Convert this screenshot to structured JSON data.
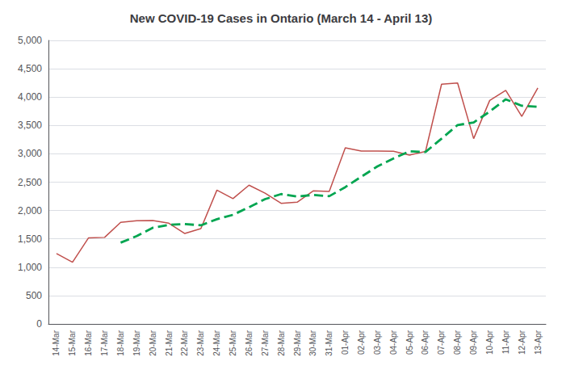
{
  "chart_data": {
    "type": "line",
    "title": "New COVID-19 Cases in Ontario (March 14 - April 13)",
    "categories": [
      "14-Mar",
      "15-Mar",
      "16-Mar",
      "17-Mar",
      "18-Mar",
      "19-Mar",
      "20-Mar",
      "21-Mar",
      "22-Mar",
      "23-Mar",
      "24-Mar",
      "25-Mar",
      "26-Mar",
      "27-Mar",
      "28-Mar",
      "29-Mar",
      "30-Mar",
      "31-Mar",
      "01-Apr",
      "02-Apr",
      "03-Apr",
      "04-Apr",
      "05-Apr",
      "06-Apr",
      "07-Apr",
      "08-Apr",
      "09-Apr",
      "10-Apr",
      "11-Apr",
      "12-Apr",
      "13-Apr"
    ],
    "series": [
      {
        "color": "#C0504D",
        "line_style": "solid",
        "values": [
          1241,
          1087,
          1518,
          1526,
          1792,
          1820,
          1823,
          1776,
          1595,
          1680,
          2359,
          2209,
          2447,
          2307,
          2127,
          2146,
          2346,
          2336,
          3106,
          3050,
          3047,
          3044,
          2977,
          3041,
          4227,
          4249,
          3268,
          3940,
          4119,
          3660,
          4163
        ]
      },
      {
        "color": "#00A550",
        "line_style": "dashed",
        "values": [
          null,
          null,
          null,
          null,
          1432.8,
          1548.6,
          1695.8,
          1747.4,
          1761.2,
          1738.8,
          1846.6,
          1923.8,
          2058,
          2200.4,
          2289.8,
          2247.2,
          2274.6,
          2252.4,
          2412.2,
          2596.8,
          2777,
          2916.6,
          3044.8,
          3031.8,
          3267.2,
          3507.6,
          3552.4,
          3745,
          3960.6,
          3847.2,
          3830
        ]
      }
    ],
    "ylim": [
      0,
      5000
    ],
    "yticks": [
      0,
      500,
      {
        "value": 1000,
        "label": "1,000"
      },
      {
        "value": 1500,
        "label": "1,500"
      },
      {
        "value": 2000,
        "label": "2,000"
      },
      {
        "value": 2500,
        "label": "2,500"
      },
      {
        "value": 3000,
        "label": "3,000"
      },
      {
        "value": 3500,
        "label": "3,500"
      },
      {
        "value": 4000,
        "label": "4,000"
      },
      {
        "value": 4500,
        "label": "4,500"
      },
      {
        "value": 5000,
        "label": "5,000"
      }
    ],
    "grid": true
  }
}
